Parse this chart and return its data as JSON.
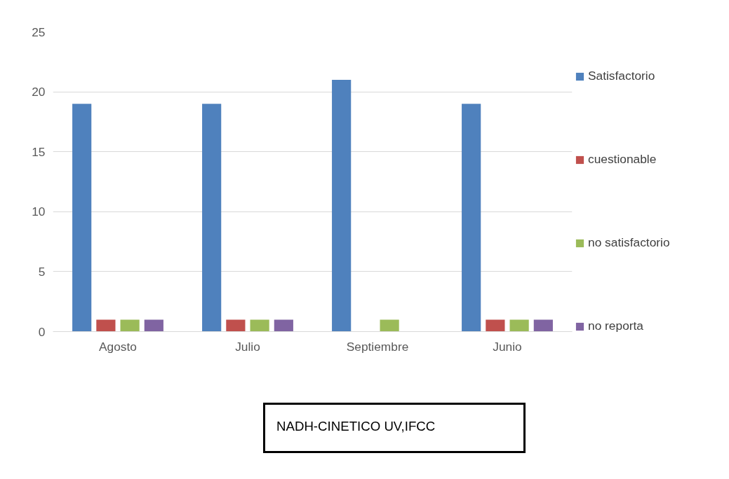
{
  "chart_data": {
    "type": "bar",
    "categories": [
      "Agosto",
      "Julio",
      "Septiembre",
      "Junio"
    ],
    "series": [
      {
        "name": "Satisfactorio",
        "color": "#4f81bd",
        "values": [
          19,
          19,
          21,
          19
        ]
      },
      {
        "name": "cuestionable",
        "color": "#c0504d",
        "values": [
          1,
          1,
          0,
          1
        ]
      },
      {
        "name": "no satisfactorio",
        "color": "#9bbb59",
        "values": [
          1,
          1,
          1,
          1
        ]
      },
      {
        "name": "no reporta",
        "color": "#8064a2",
        "values": [
          1,
          1,
          0,
          1
        ]
      }
    ],
    "ylim": [
      0,
      25
    ],
    "yticks": [
      0,
      5,
      10,
      15,
      20,
      25
    ],
    "grid": "y",
    "legend": "right",
    "annotations": [
      "NADH-CINETICO UV,IFCC"
    ]
  }
}
